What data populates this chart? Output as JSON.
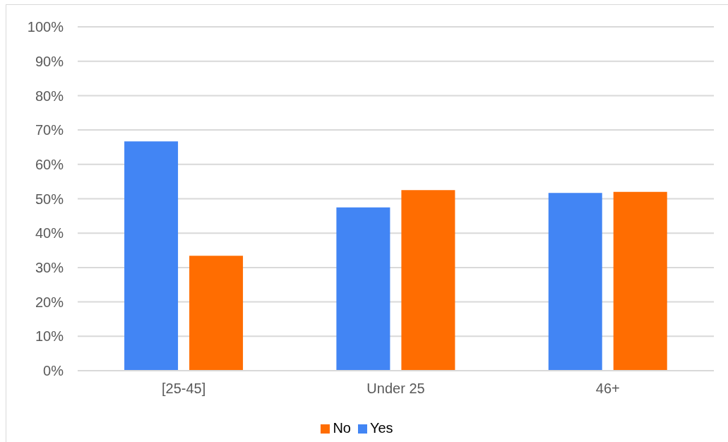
{
  "chart_data": {
    "type": "bar",
    "categories": [
      "[25-45]",
      "Under 25",
      "46+"
    ],
    "series": [
      {
        "name": "Yes",
        "color": "#4285f4",
        "values": [
          66.7,
          47.5,
          51.7
        ]
      },
      {
        "name": "No",
        "color": "#ff6d01",
        "values": [
          33.4,
          52.5,
          52.0
        ]
      }
    ],
    "ylim": [
      0,
      100
    ],
    "yticks": [
      {
        "value": 0,
        "label": "0%"
      },
      {
        "value": 10,
        "label": "10%"
      },
      {
        "value": 20,
        "label": "20%"
      },
      {
        "value": 30,
        "label": "30%"
      },
      {
        "value": 40,
        "label": "40%"
      },
      {
        "value": 50,
        "label": "50%"
      },
      {
        "value": 60,
        "label": "60%"
      },
      {
        "value": 70,
        "label": "70%"
      },
      {
        "value": 80,
        "label": "80%"
      },
      {
        "value": 90,
        "label": "90%"
      },
      {
        "value": 100,
        "label": "100%"
      }
    ],
    "grid": "y",
    "legend": "bottom"
  }
}
